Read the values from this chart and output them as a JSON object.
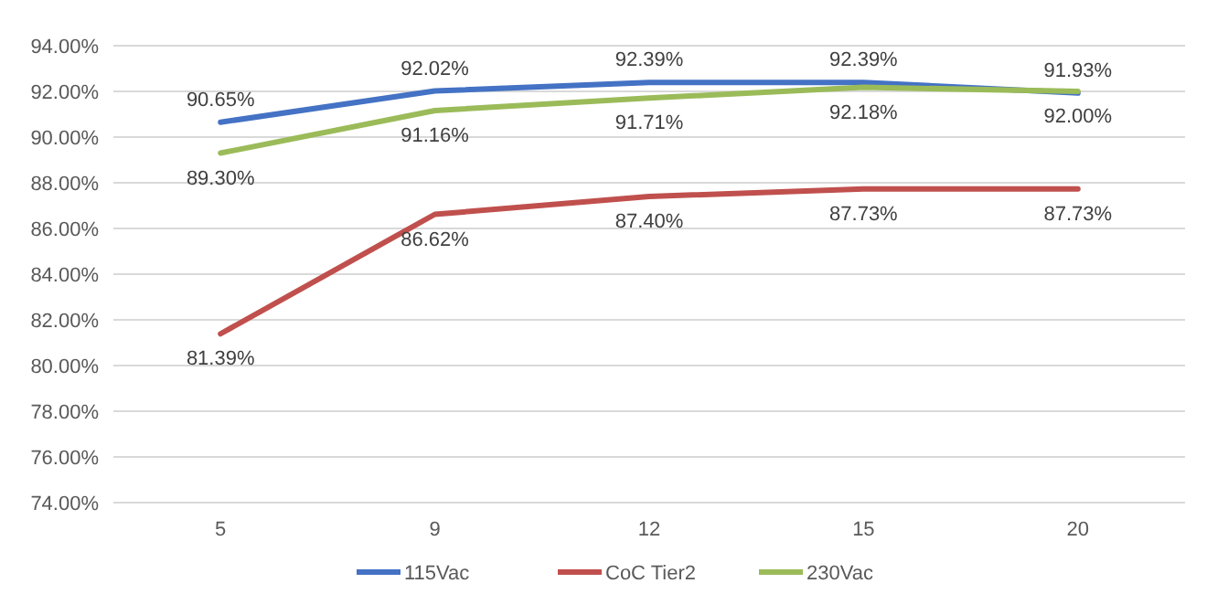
{
  "chart_data": {
    "type": "line",
    "categories": [
      "5",
      "9",
      "12",
      "15",
      "20"
    ],
    "series": [
      {
        "name": "115Vac",
        "color": "#4472c4",
        "values": [
          90.65,
          92.02,
          92.39,
          92.39,
          91.93
        ],
        "value_labels": [
          "90.65%",
          "92.02%",
          "92.39%",
          "92.39%",
          "91.93%"
        ]
      },
      {
        "name": "CoC Tier2",
        "color": "#c0504d",
        "values": [
          81.39,
          86.62,
          87.4,
          87.73,
          87.73
        ],
        "value_labels": [
          "81.39%",
          "86.62%",
          "87.40%",
          "87.73%",
          "87.73%"
        ]
      },
      {
        "name": "230Vac",
        "color": "#9bbb59",
        "values": [
          89.3,
          91.16,
          91.71,
          92.18,
          92.0
        ],
        "value_labels": [
          "89.30%",
          "91.16%",
          "91.71%",
          "92.18%",
          "92.00%"
        ]
      }
    ],
    "ylim": [
      74,
      94
    ],
    "yticks": [
      {
        "value": 74,
        "label": "74.00%"
      },
      {
        "value": 76,
        "label": "76.00%"
      },
      {
        "value": 78,
        "label": "78.00%"
      },
      {
        "value": 80,
        "label": "80.00%"
      },
      {
        "value": 82,
        "label": "82.00%"
      },
      {
        "value": 84,
        "label": "84.00%"
      },
      {
        "value": 86,
        "label": "86.00%"
      },
      {
        "value": 88,
        "label": "88.00%"
      },
      {
        "value": 90,
        "label": "90.00%"
      },
      {
        "value": 92,
        "label": "92.00%"
      },
      {
        "value": 94,
        "label": "94.00%"
      }
    ],
    "grid": "y",
    "legend": "bottom",
    "marker": "none",
    "line_style": "solid"
  }
}
